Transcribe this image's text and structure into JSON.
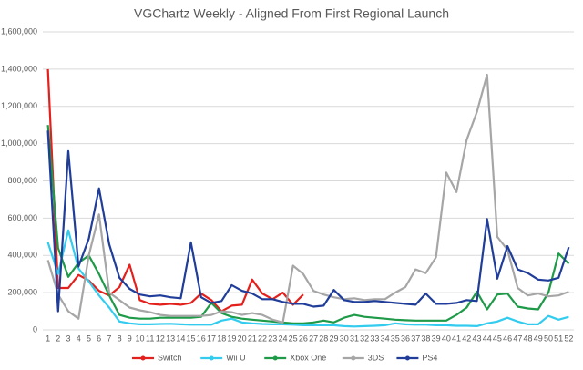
{
  "chart_data": {
    "type": "line",
    "title": "VGChartz Weekly - Aligned From First Regional Launch",
    "categories": [
      1,
      2,
      3,
      4,
      5,
      6,
      7,
      8,
      9,
      10,
      11,
      12,
      13,
      14,
      15,
      16,
      17,
      18,
      19,
      20,
      21,
      22,
      23,
      24,
      25,
      26,
      27,
      28,
      29,
      30,
      31,
      32,
      33,
      34,
      35,
      36,
      37,
      38,
      39,
      40,
      41,
      42,
      43,
      44,
      45,
      46,
      47,
      48,
      49,
      50,
      51,
      52
    ],
    "ylim": [
      0,
      1600000
    ],
    "yticks": [
      0,
      {
        "value": 200000,
        "label": "200,000"
      },
      {
        "value": 400000,
        "label": "400,000"
      },
      {
        "value": 600000,
        "label": "600,000"
      },
      {
        "value": 800000,
        "label": "800,000"
      },
      {
        "value": 1000000,
        "label": "1,000,000"
      },
      {
        "value": 1200000,
        "label": "1,200,000"
      },
      {
        "value": 1400000,
        "label": "1,400,000"
      },
      {
        "value": 1600000,
        "label": "1,600,000"
      }
    ],
    "grid": true,
    "legend": "bottom",
    "series": [
      {
        "name": "Switch",
        "color": "#e3201c",
        "values": [
          1400000,
          225000,
          225000,
          295000,
          265000,
          210000,
          185000,
          230000,
          350000,
          160000,
          140000,
          135000,
          140000,
          135000,
          145000,
          195000,
          160000,
          100000,
          130000,
          135000,
          270000,
          195000,
          165000,
          200000,
          135000,
          190000,
          null,
          null,
          null,
          null,
          null,
          null,
          null,
          null,
          null,
          null,
          null,
          null,
          null,
          null,
          null,
          null,
          null,
          null,
          null,
          null,
          null,
          null,
          null,
          null,
          null,
          null
        ]
      },
      {
        "name": "Wii U",
        "color": "#33ccee",
        "values": [
          470000,
          300000,
          535000,
          330000,
          260000,
          185000,
          120000,
          45000,
          35000,
          30000,
          30000,
          32000,
          33000,
          30000,
          28000,
          28000,
          28000,
          50000,
          60000,
          40000,
          35000,
          32000,
          30000,
          30000,
          28000,
          25000,
          25000,
          25000,
          25000,
          20000,
          18000,
          20000,
          22000,
          25000,
          35000,
          30000,
          28000,
          28000,
          25000,
          25000,
          22000,
          22000,
          20000,
          35000,
          45000,
          65000,
          45000,
          30000,
          30000,
          75000,
          55000,
          70000
        ]
      },
      {
        "name": "Xbox One",
        "color": "#1e9a48",
        "values": [
          1100000,
          440000,
          285000,
          360000,
          400000,
          300000,
          185000,
          80000,
          65000,
          60000,
          60000,
          65000,
          65000,
          65000,
          65000,
          70000,
          145000,
          90000,
          70000,
          60000,
          55000,
          50000,
          45000,
          40000,
          35000,
          35000,
          40000,
          50000,
          40000,
          65000,
          80000,
          70000,
          65000,
          60000,
          55000,
          52000,
          50000,
          50000,
          50000,
          50000,
          80000,
          120000,
          205000,
          110000,
          190000,
          195000,
          125000,
          115000,
          110000,
          200000,
          410000,
          355000
        ]
      },
      {
        "name": "3DS",
        "color": "#a6a6a6",
        "values": [
          375000,
          190000,
          100000,
          60000,
          400000,
          620000,
          200000,
          160000,
          120000,
          105000,
          95000,
          80000,
          75000,
          75000,
          75000,
          75000,
          80000,
          100000,
          95000,
          80000,
          90000,
          80000,
          55000,
          40000,
          345000,
          300000,
          210000,
          190000,
          175000,
          165000,
          170000,
          160000,
          165000,
          165000,
          200000,
          230000,
          325000,
          305000,
          390000,
          845000,
          740000,
          1020000,
          1170000,
          1370000,
          500000,
          430000,
          225000,
          185000,
          195000,
          180000,
          185000,
          205000
        ]
      },
      {
        "name": "PS4",
        "color": "#1f3d99",
        "values": [
          1070000,
          100000,
          960000,
          340000,
          490000,
          760000,
          460000,
          280000,
          220000,
          190000,
          180000,
          185000,
          175000,
          170000,
          470000,
          175000,
          145000,
          155000,
          240000,
          210000,
          195000,
          165000,
          165000,
          150000,
          140000,
          140000,
          125000,
          130000,
          215000,
          160000,
          150000,
          150000,
          155000,
          150000,
          145000,
          140000,
          135000,
          195000,
          140000,
          140000,
          145000,
          160000,
          155000,
          595000,
          275000,
          450000,
          325000,
          305000,
          270000,
          265000,
          280000,
          445000
        ]
      }
    ]
  }
}
